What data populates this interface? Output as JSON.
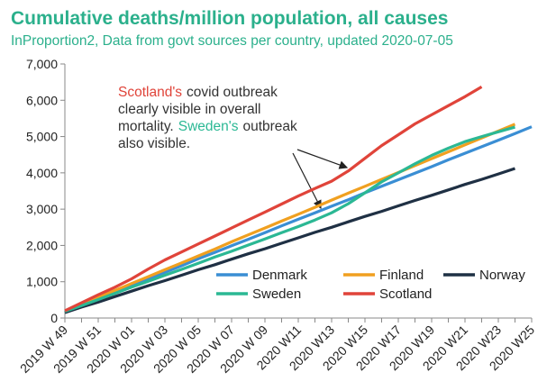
{
  "chart_data": {
    "type": "line",
    "title": "Cumulative deaths/million population, all causes",
    "subtitle": "InProportion2, Data from govt sources per country, updated 2020-07-05",
    "categories": [
      "2019 W 49",
      null,
      "2019 W 51",
      null,
      "2020 W 01",
      null,
      "2020 W 03",
      null,
      "2020 W 05",
      null,
      "2020 W 07",
      null,
      "2020 W 09",
      null,
      "2020 W11",
      null,
      "2020 W13",
      null,
      "2020 W15",
      null,
      "2020 W17",
      null,
      "2020 W19",
      null,
      "2020 W21",
      null,
      "2020 W23",
      null,
      "2020 W25"
    ],
    "ylim": [
      0,
      7000
    ],
    "yticks": [
      0,
      {
        "value": 1000,
        "label": "1,000"
      },
      {
        "value": 2000,
        "label": "2,000"
      },
      {
        "value": 3000,
        "label": "3,000"
      },
      {
        "value": 4000,
        "label": "4,000"
      },
      {
        "value": 5000,
        "label": "5,000"
      },
      {
        "value": 6000,
        "label": "6,000"
      },
      {
        "value": 7000,
        "label": "7,000"
      }
    ],
    "grid": false,
    "legend": "bottom-right",
    "series": [
      {
        "name": "Denmark",
        "color": "#3a8ed4",
        "values": [
          170,
          350,
          530,
          720,
          900,
          1080,
          1260,
          1440,
          1630,
          1810,
          1990,
          2170,
          2350,
          2540,
          2720,
          2900,
          3080,
          3260,
          3450,
          3630,
          3810,
          3990,
          4170,
          4360,
          4540,
          4720,
          4900,
          5080,
          5270
        ]
      },
      {
        "name": "Finland",
        "color": "#f0a020",
        "values": [
          190,
          380,
          570,
          760,
          950,
          1140,
          1330,
          1520,
          1710,
          1900,
          2100,
          2290,
          2480,
          2670,
          2860,
          3050,
          3250,
          3440,
          3630,
          3820,
          4010,
          4200,
          4390,
          4580,
          4770,
          4960,
          5150,
          5340,
          null
        ]
      },
      {
        "name": "Norway",
        "color": "#1f3044",
        "values": [
          150,
          300,
          440,
          590,
          740,
          890,
          1030,
          1180,
          1330,
          1470,
          1620,
          1770,
          1910,
          2060,
          2210,
          2360,
          2500,
          2650,
          2800,
          2940,
          3090,
          3240,
          3380,
          3530,
          3680,
          3820,
          3970,
          4120,
          null
        ]
      },
      {
        "name": "Sweden",
        "color": "#2bb894",
        "values": [
          180,
          340,
          510,
          680,
          850,
          1010,
          1180,
          1340,
          1510,
          1680,
          1840,
          2010,
          2180,
          2350,
          2520,
          2700,
          2900,
          3150,
          3450,
          3750,
          4000,
          4250,
          4480,
          4680,
          4860,
          5000,
          5130,
          5260,
          null
        ]
      },
      {
        "name": "Scotland",
        "color": "#e0443a",
        "values": [
          200,
          420,
          640,
          850,
          1080,
          1350,
          1600,
          1820,
          2040,
          2260,
          2480,
          2700,
          2920,
          3140,
          3360,
          3570,
          3770,
          4050,
          4400,
          4750,
          5050,
          5350,
          5600,
          5850,
          6100,
          6370,
          null,
          null,
          null
        ]
      }
    ],
    "annotation": [
      [
        {
          "text": "Scotland's",
          "color": "#e0443a"
        },
        {
          "text": "covid outbreak",
          "color": "#333333"
        }
      ],
      [
        {
          "text": "clearly visible in overall",
          "color": "#333333"
        }
      ],
      [
        {
          "text": "mortality.",
          "color": "#333333"
        },
        {
          "text": "Sweden's",
          "color": "#2bb894"
        },
        {
          "text": "outbreak",
          "color": "#333333"
        }
      ],
      [
        {
          "text": "also visible.",
          "color": "#333333"
        }
      ]
    ]
  }
}
